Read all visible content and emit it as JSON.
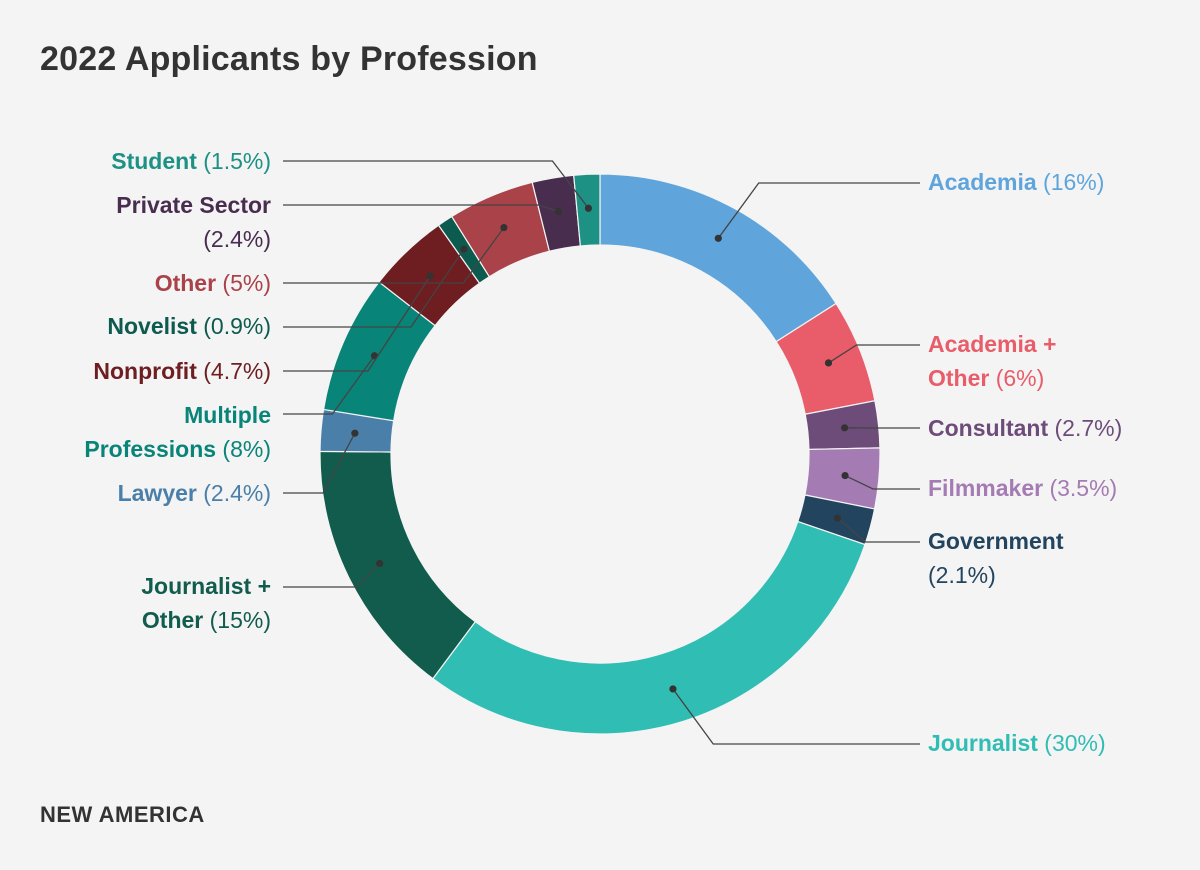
{
  "title": "2022 Applicants by Profession",
  "brand": "NEW AMERICA",
  "colors": {
    "background": "#f4f4f4",
    "text": "#333333",
    "leader": "#444444"
  },
  "chart_data": {
    "type": "pie",
    "variant": "donut",
    "title": "2022 Applicants by Profession",
    "unit": "%",
    "slices": [
      {
        "name": "Academia",
        "value": 16,
        "pct_label": "(16%)",
        "color": "#5fa5dc",
        "lines": [
          "Academia"
        ],
        "side": "right"
      },
      {
        "name": "Academia + Other",
        "value": 6,
        "pct_label": "(6%)",
        "color": "#e85d69",
        "lines": [
          "Academia +",
          "Other"
        ],
        "side": "right"
      },
      {
        "name": "Consultant",
        "value": 2.7,
        "pct_label": "(2.7%)",
        "color": "#6e4c7a",
        "lines": [
          "Consultant"
        ],
        "side": "right"
      },
      {
        "name": "Filmmaker",
        "value": 3.5,
        "pct_label": "(3.5%)",
        "color": "#a47bb3",
        "lines": [
          "Filmmaker"
        ],
        "side": "right"
      },
      {
        "name": "Government",
        "value": 2.1,
        "pct_label": "(2.1%)",
        "color": "#22445f",
        "lines": [
          "Government",
          ""
        ],
        "side": "right"
      },
      {
        "name": "Journalist",
        "value": 30,
        "pct_label": "(30%)",
        "color": "#30bdb4",
        "lines": [
          "Journalist"
        ],
        "side": "right"
      },
      {
        "name": "Journalist + Other",
        "value": 15,
        "pct_label": "(15%)",
        "color": "#115c4c",
        "lines": [
          "Journalist +",
          "Other"
        ],
        "side": "left"
      },
      {
        "name": "Lawyer",
        "value": 2.4,
        "pct_label": "(2.4%)",
        "color": "#4a7fa9",
        "lines": [
          "Lawyer"
        ],
        "side": "left"
      },
      {
        "name": "Multiple Professions",
        "value": 8,
        "pct_label": "(8%)",
        "color": "#098478",
        "lines": [
          "Multiple",
          "Professions"
        ],
        "side": "left"
      },
      {
        "name": "Nonprofit",
        "value": 4.7,
        "pct_label": "(4.7%)",
        "color": "#6e1d21",
        "lines": [
          "Nonprofit"
        ],
        "side": "left"
      },
      {
        "name": "Novelist",
        "value": 0.9,
        "pct_label": "(0.9%)",
        "color": "#0d5a4f",
        "lines": [
          "Novelist"
        ],
        "side": "left"
      },
      {
        "name": "Other",
        "value": 5,
        "pct_label": "(5%)",
        "color": "#aa424a",
        "lines": [
          "Other"
        ],
        "side": "left"
      },
      {
        "name": "Private Sector",
        "value": 2.4,
        "pct_label": "(2.4%)",
        "color": "#482d4f",
        "lines": [
          "Private Sector",
          ""
        ],
        "side": "left"
      },
      {
        "name": "Student",
        "value": 1.5,
        "pct_label": "(1.5%)",
        "color": "#1d9183",
        "lines": [
          "Student"
        ],
        "side": "left"
      }
    ]
  }
}
